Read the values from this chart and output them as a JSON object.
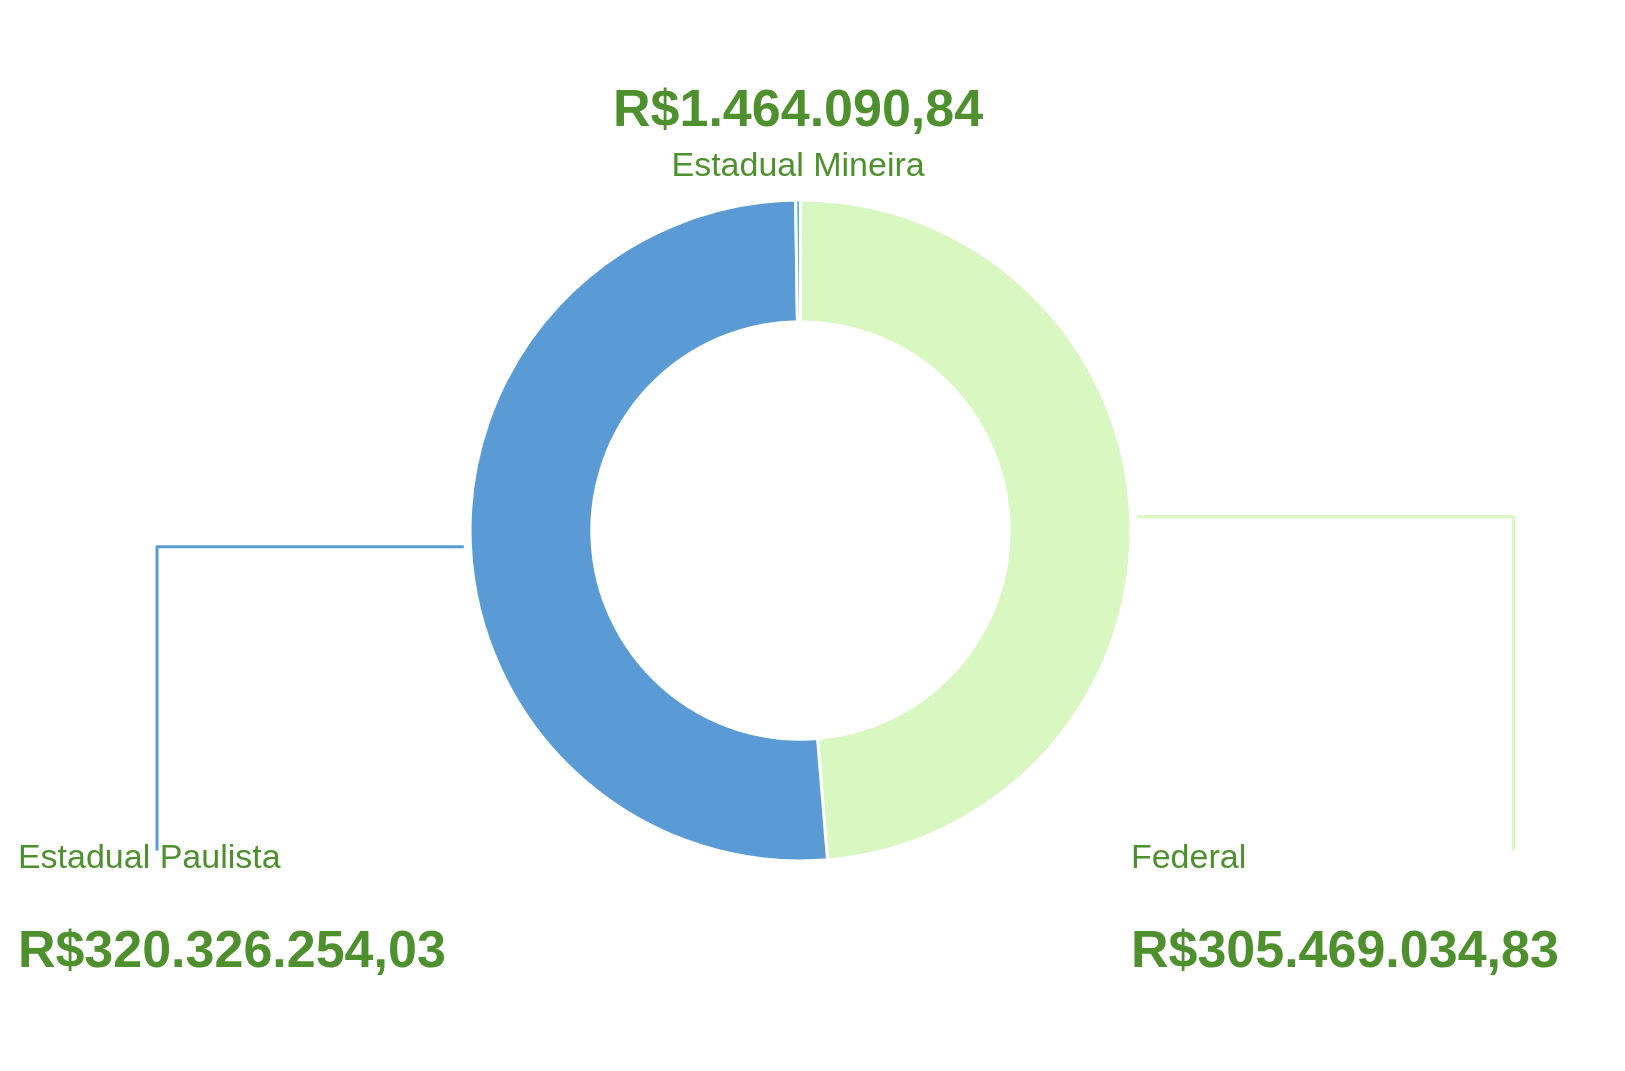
{
  "chart_data": {
    "type": "donut",
    "categories": [
      "Federal",
      "Estadual Paulista",
      "Estadual Mineira"
    ],
    "values": [
      305469034.83,
      320326254.03,
      1464090.84
    ],
    "value_labels": [
      "R$305.469.034,83",
      "R$320.326.254,03",
      "R$1.464.090,84"
    ],
    "colors": [
      "#d9f7c0",
      "#5b9bd5",
      "#4fb9c9"
    ],
    "legend": false
  }
}
